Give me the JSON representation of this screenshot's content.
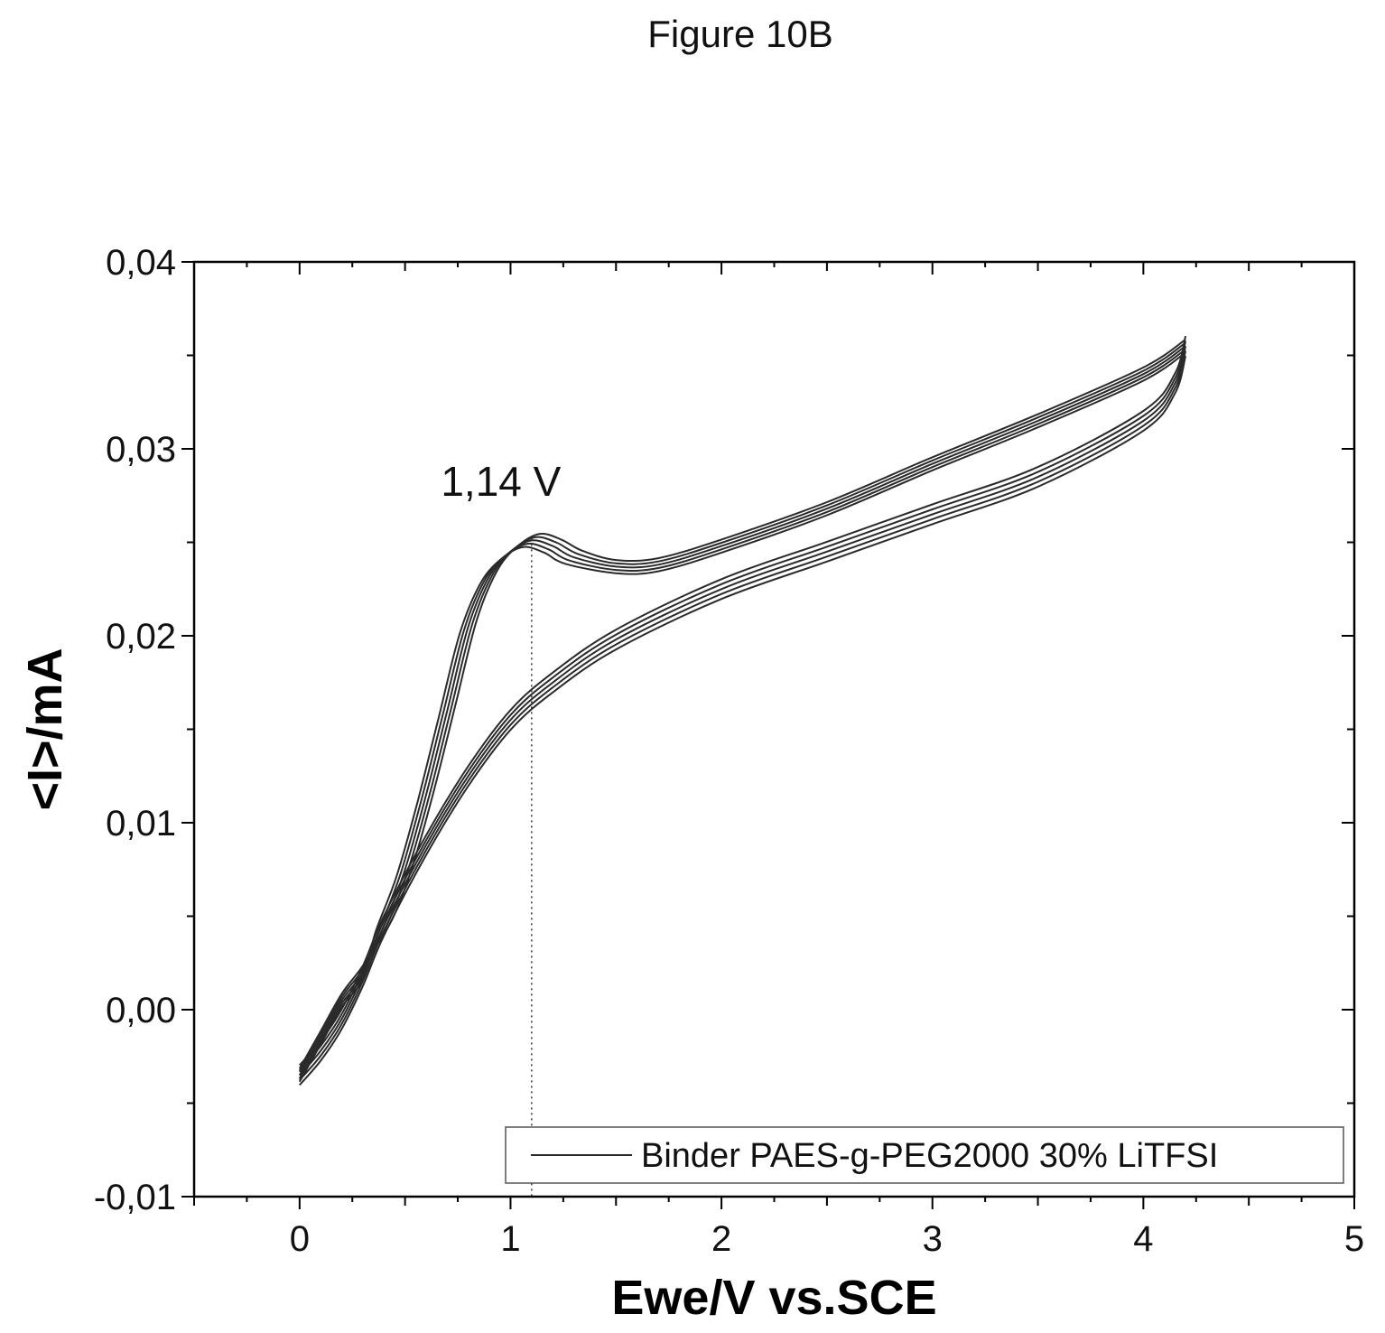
{
  "figure_title": "Figure 10B",
  "colors": {
    "curve": "#2a2a2a",
    "axis": "#000000",
    "background": "#ffffff"
  },
  "chart_data": {
    "type": "line",
    "title": "Figure 10B",
    "xlabel": "Ewe/V vs.SCE",
    "ylabel": "<I>/mA",
    "xlim": [
      -0.5,
      5
    ],
    "ylim": [
      -0.01,
      0.04
    ],
    "x_ticks": [
      0,
      1,
      2,
      3,
      4,
      5
    ],
    "x_tick_labels": [
      "0",
      "1",
      "2",
      "3",
      "4",
      "5"
    ],
    "y_ticks": [
      -0.01,
      0.0,
      0.01,
      0.02,
      0.03,
      0.04
    ],
    "y_tick_labels": [
      "-0,01",
      "0,00",
      "0,01",
      "0,02",
      "0,03",
      "0,04"
    ],
    "grid": false,
    "legend_position": "bottom-right",
    "legend": [
      "Binder PAES-g-PEG2000 30% LiTFSI"
    ],
    "annotation": {
      "text": "1,14 V",
      "x": 1.14,
      "y": 0.0252
    },
    "series": [
      {
        "name": "Binder PAES-g-PEG2000 30% LiTFSI",
        "cycles": 5,
        "forward": [
          [
            0.0,
            -0.0035
          ],
          [
            0.1,
            -0.0015
          ],
          [
            0.2,
            0.0005
          ],
          [
            0.3,
            0.002
          ],
          [
            0.4,
            0.0045
          ],
          [
            0.5,
            0.0075
          ],
          [
            0.6,
            0.0115
          ],
          [
            0.7,
            0.016
          ],
          [
            0.8,
            0.0205
          ],
          [
            0.9,
            0.0232
          ],
          [
            1.0,
            0.0245
          ],
          [
            1.1,
            0.0251
          ],
          [
            1.2,
            0.0248
          ],
          [
            1.3,
            0.0242
          ],
          [
            1.5,
            0.0237
          ],
          [
            1.7,
            0.0238
          ],
          [
            2.0,
            0.0248
          ],
          [
            2.5,
            0.0268
          ],
          [
            3.0,
            0.0292
          ],
          [
            3.5,
            0.0315
          ],
          [
            4.0,
            0.034
          ],
          [
            4.2,
            0.0355
          ]
        ],
        "reverse": [
          [
            4.2,
            0.0355
          ],
          [
            4.15,
            0.0335
          ],
          [
            4.0,
            0.0315
          ],
          [
            3.5,
            0.0285
          ],
          [
            3.0,
            0.0265
          ],
          [
            2.5,
            0.0245
          ],
          [
            2.0,
            0.0225
          ],
          [
            1.5,
            0.0198
          ],
          [
            1.2,
            0.0175
          ],
          [
            1.0,
            0.0155
          ],
          [
            0.8,
            0.0125
          ],
          [
            0.6,
            0.0088
          ],
          [
            0.4,
            0.0045
          ],
          [
            0.3,
            0.0018
          ],
          [
            0.2,
            -0.0005
          ],
          [
            0.1,
            -0.0022
          ],
          [
            0.0,
            -0.0035
          ]
        ]
      }
    ]
  }
}
